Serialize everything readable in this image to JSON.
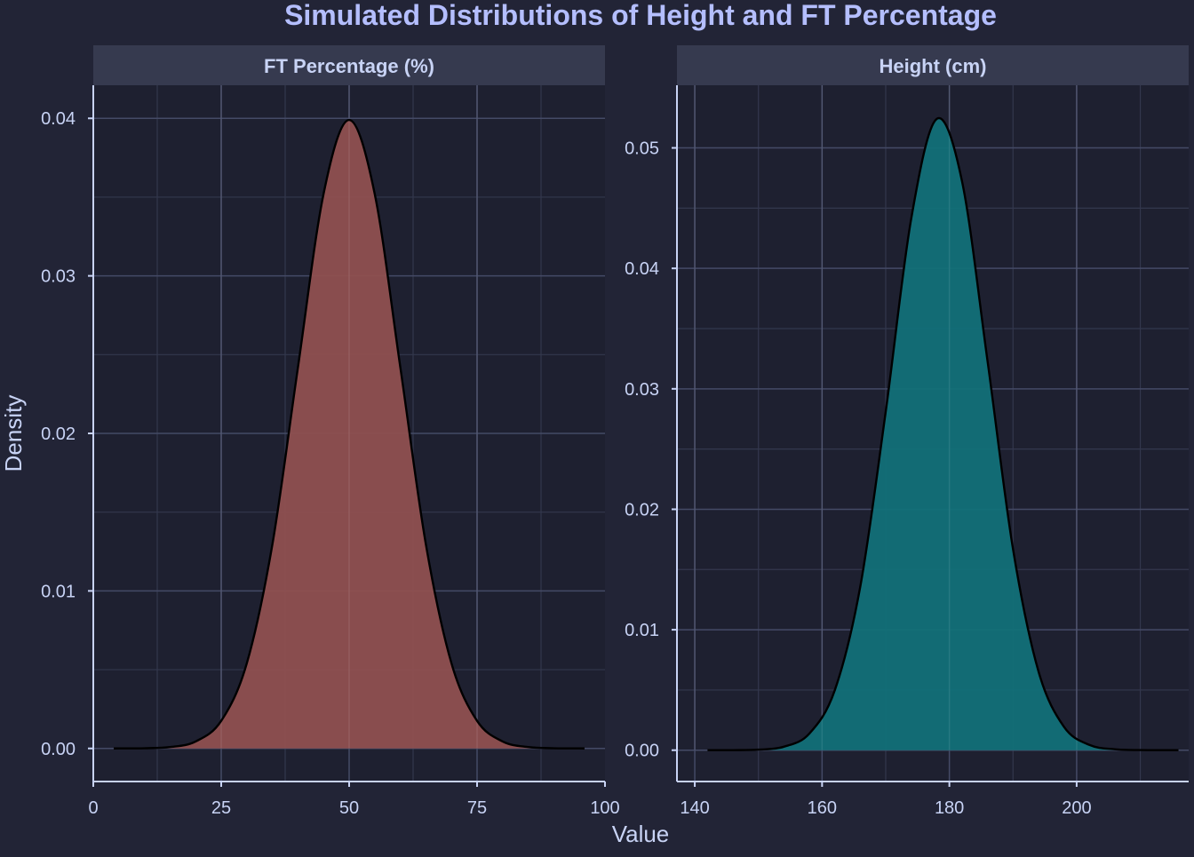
{
  "chart_data": {
    "type": "area",
    "title": "Simulated Distributions of Height and FT Percentage",
    "xlabel": "Value",
    "ylabel": "Density",
    "grid": true,
    "colors": {
      "background": "#222436",
      "panel": "#1e2030",
      "strip": "#363a4f",
      "text": "#c8d3f5",
      "title": "#b4befe",
      "grid_major": "#444a66",
      "grid_minor": "#33374d",
      "axis": "#c8d3f5",
      "line": "#000000"
    },
    "panels": [
      {
        "strip_label": "FT Percentage (%)",
        "fill": "#8f5050",
        "xlim": [
          0,
          100
        ],
        "ylim": [
          -0.0021,
          0.0421
        ],
        "xticks": [
          0,
          25,
          50,
          75,
          100
        ],
        "xtick_labels": [
          "0",
          "25",
          "50",
          "75",
          "100"
        ],
        "xminor": [
          12.5,
          37.5,
          62.5,
          87.5
        ],
        "yticks": [
          0,
          0.01,
          0.02,
          0.03,
          0.04
        ],
        "ytick_labels": [
          "0.00",
          "0.01",
          "0.02",
          "0.03",
          "0.04"
        ],
        "yminor": [
          0.005,
          0.015,
          0.025,
          0.035
        ],
        "x": [
          4,
          5,
          10,
          15,
          20,
          25,
          30,
          35,
          40,
          45,
          50,
          55,
          60,
          65,
          70,
          75,
          80,
          85,
          90,
          95,
          96
        ],
        "y": [
          0.0,
          1.6e-06,
          1.34e-05,
          8.73e-05,
          0.000443,
          0.00175,
          0.0054,
          0.01295,
          0.0242,
          0.0352,
          0.0399,
          0.0352,
          0.0242,
          0.01295,
          0.0054,
          0.00175,
          0.000443,
          8.73e-05,
          1.34e-05,
          1.6e-06,
          0.0
        ]
      },
      {
        "strip_label": "Height (cm)",
        "fill": "#127078",
        "xlim": [
          137.2,
          217.6
        ],
        "ylim": [
          -0.0026,
          0.0552
        ],
        "xticks": [
          140,
          160,
          180,
          200
        ],
        "xtick_labels": [
          "140",
          "160",
          "180",
          "200"
        ],
        "xminor": [
          150,
          170,
          190,
          210
        ],
        "yticks": [
          0,
          0.01,
          0.02,
          0.03,
          0.04,
          0.05
        ],
        "ytick_labels": [
          "0.00",
          "0.01",
          "0.02",
          "0.03",
          "0.04",
          "0.05"
        ],
        "yminor": [
          0.005,
          0.015,
          0.025,
          0.035,
          0.045
        ],
        "x": [
          142,
          146,
          150,
          154,
          158,
          162,
          166,
          170,
          174,
          178,
          182,
          186,
          190,
          194,
          198,
          202,
          206,
          210,
          214,
          216
        ],
        "y": [
          5e-07,
          5.6e-06,
          4.66e-05,
          0.00029,
          0.00138,
          0.00498,
          0.01357,
          0.0281,
          0.0441,
          0.0524,
          0.0472,
          0.0323,
          0.0167,
          0.00655,
          0.00195,
          0.00044,
          7.5e-05,
          1e-05,
          1e-06,
          0.0
        ]
      }
    ]
  }
}
